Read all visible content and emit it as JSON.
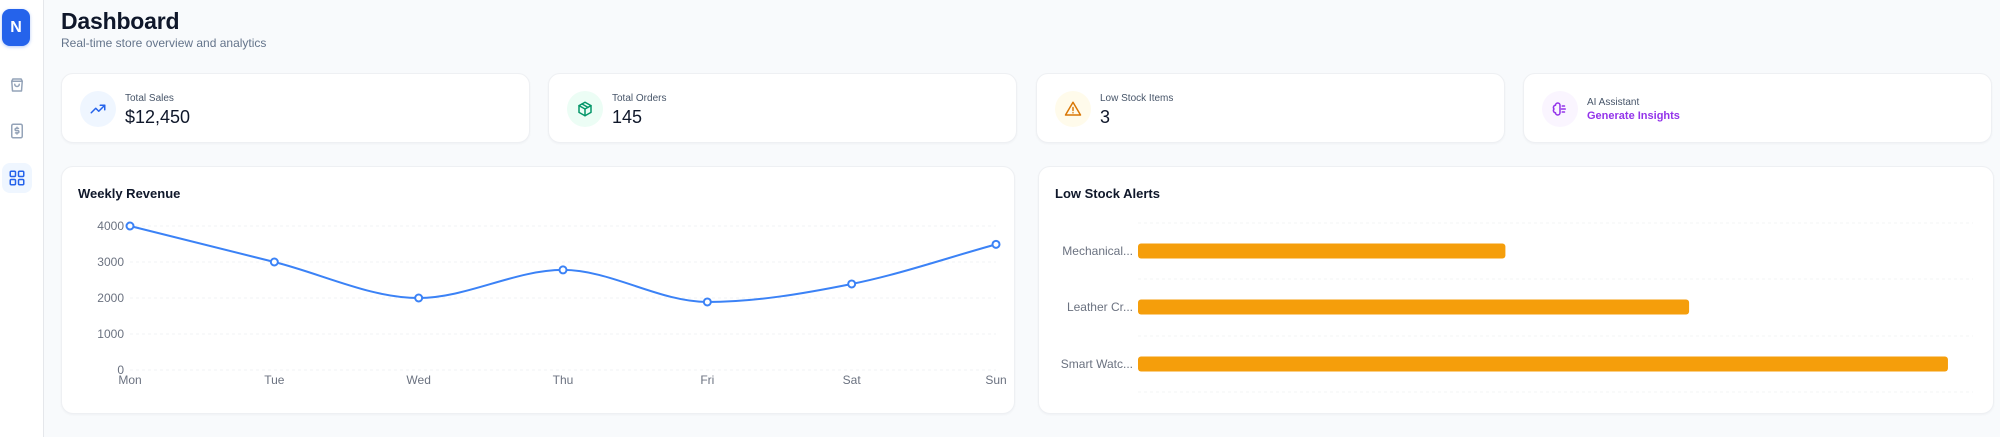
{
  "sidebar": {
    "logo_letter": "N",
    "items": [
      {
        "name": "orders",
        "icon": "shopping-bag-icon",
        "active": false
      },
      {
        "name": "billing",
        "icon": "dollar-receipt-icon",
        "active": false
      },
      {
        "name": "dashboard",
        "icon": "grid-icon",
        "active": true
      }
    ]
  },
  "header": {
    "title": "Dashboard",
    "subtitle": "Real-time store overview and analytics"
  },
  "stats": [
    {
      "label": "Total Sales",
      "value": "$12,450",
      "icon": "trending-up-icon",
      "color": "#2563eb",
      "bg": "#eff6ff"
    },
    {
      "label": "Total Orders",
      "value": "145",
      "icon": "package-icon",
      "color": "#059669",
      "bg": "#ecfdf5"
    },
    {
      "label": "Low Stock Items",
      "value": "3",
      "icon": "warning-icon",
      "color": "#d97706",
      "bg": "#fffbeb"
    },
    {
      "label": "AI Assistant",
      "link": "Generate Insights",
      "icon": "brain-icon",
      "color": "#9333ea",
      "bg": "#faf5ff"
    }
  ],
  "revenue_card": {
    "title": "Weekly Revenue"
  },
  "stock_card": {
    "title": "Low Stock Alerts"
  },
  "chart_data": [
    {
      "type": "line",
      "title": "Weekly Revenue",
      "categories": [
        "Mon",
        "Tue",
        "Wed",
        "Thu",
        "Fri",
        "Sat",
        "Sun"
      ],
      "values": [
        4000,
        3000,
        2000,
        2780,
        1890,
        2390,
        3490
      ],
      "yticks": [
        0,
        1000,
        2000,
        3000,
        4000
      ],
      "ylim": [
        0,
        4000
      ],
      "color": "#3b82f6",
      "grid": true,
      "smooth": true
    },
    {
      "type": "bar",
      "orientation": "horizontal",
      "title": "Low Stock Alerts",
      "categories": [
        "Mechanical...",
        "Leather Cr...",
        "Smart Watc..."
      ],
      "values": [
        0.44,
        0.66,
        0.97
      ],
      "color": "#f59e0b",
      "grid": true
    }
  ]
}
